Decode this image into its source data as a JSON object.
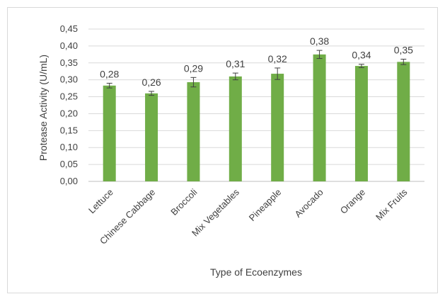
{
  "chart_data": {
    "type": "bar",
    "categories": [
      "Lettuce",
      "Chinese Cabbage",
      "Broccoli",
      "Mix Vegetables",
      "Pineapple",
      "Avocado",
      "Orange",
      "Mix Fruits"
    ],
    "values": [
      0.283,
      0.26,
      0.293,
      0.31,
      0.318,
      0.375,
      0.341,
      0.353
    ],
    "errors": [
      0.007,
      0.006,
      0.014,
      0.01,
      0.017,
      0.012,
      0.005,
      0.008
    ],
    "data_labels": [
      "0,28",
      "0,26",
      "0,29",
      "0,31",
      "0,32",
      "0,38",
      "0,34",
      "0,35"
    ],
    "y_ticks": [
      "0,00",
      "0,05",
      "0,10",
      "0,15",
      "0,20",
      "0,25",
      "0,30",
      "0,35",
      "0,40",
      "0,45"
    ],
    "ylim": [
      0,
      0.45
    ],
    "xlabel": "Type of Ecoenzymes",
    "ylabel": "Protease Activity (U/mL)",
    "title": "",
    "grid": true,
    "legend": "none",
    "bar_color": "#70ad47",
    "grid_color": "#d9d9d9",
    "text_color": "#404040"
  }
}
